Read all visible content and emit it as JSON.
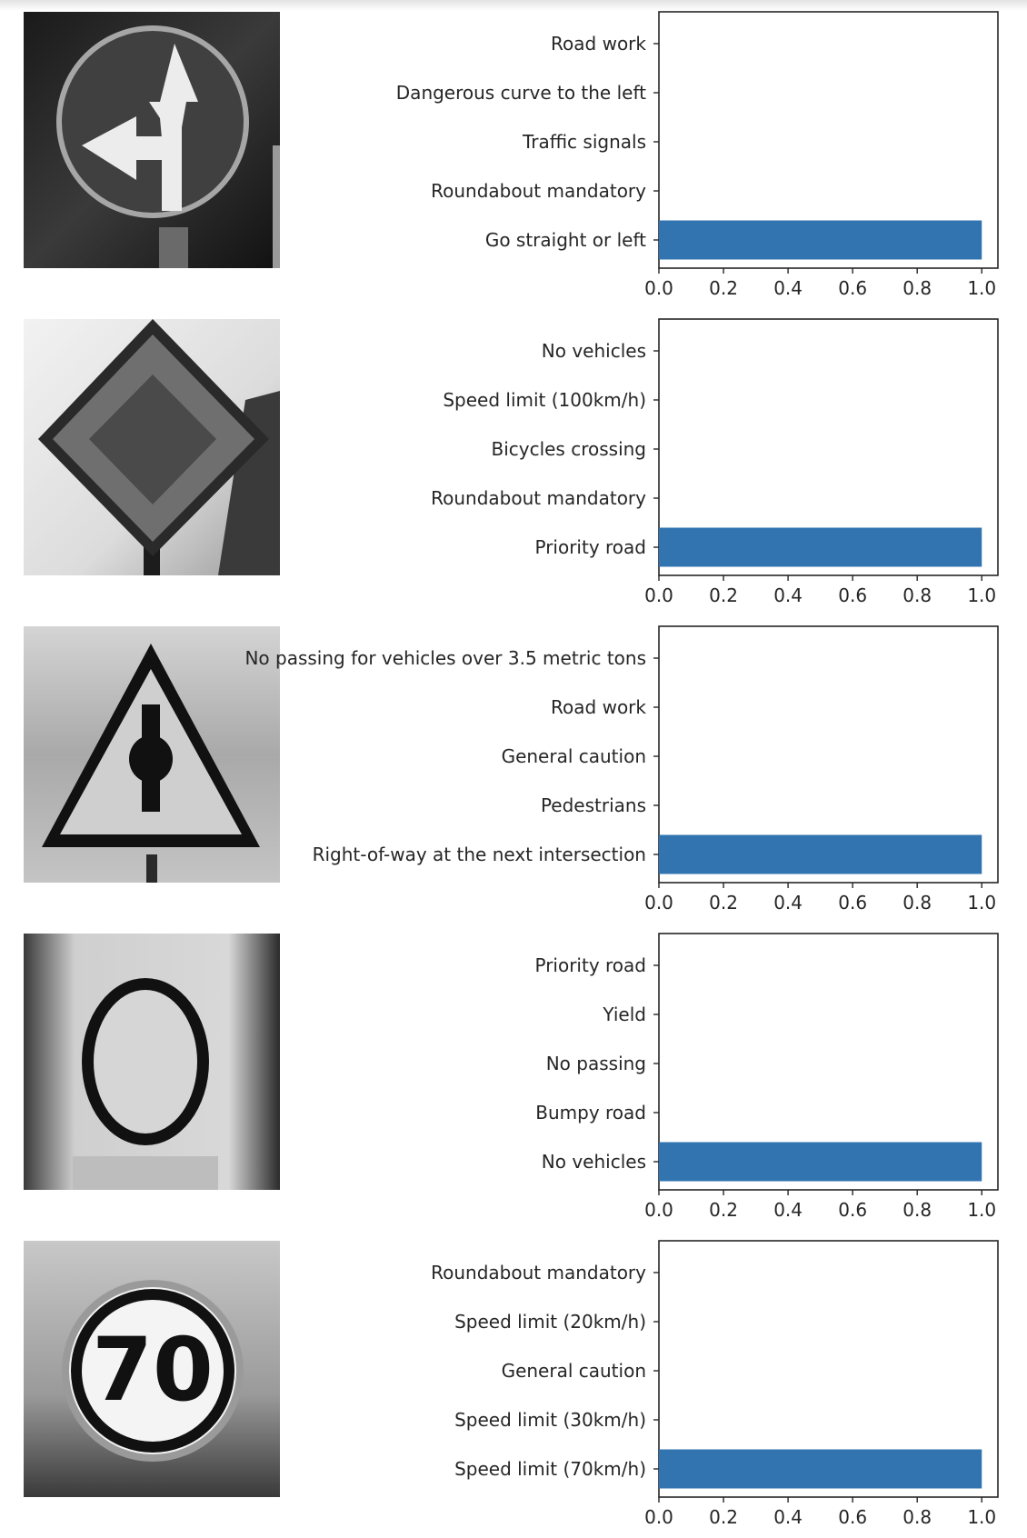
{
  "chart_data": [
    {
      "type": "bar",
      "orientation": "horizontal",
      "sign_image": "go-straight-or-left-sign",
      "categories": [
        "Road work",
        "Dangerous curve to the left",
        "Traffic signals",
        "Roundabout mandatory",
        "Go straight or left"
      ],
      "values": [
        0.0,
        0.0,
        0.0,
        0.0,
        1.0
      ],
      "xlim": [
        0,
        1.05
      ],
      "xticks": [
        "0.0",
        "0.2",
        "0.4",
        "0.6",
        "0.8",
        "1.0"
      ],
      "bar_color": "#3174b0"
    },
    {
      "type": "bar",
      "orientation": "horizontal",
      "sign_image": "priority-road-sign",
      "categories": [
        "No vehicles",
        "Speed limit (100km/h)",
        "Bicycles crossing",
        "Roundabout mandatory",
        "Priority road"
      ],
      "values": [
        0.0,
        0.0,
        0.0,
        0.0,
        1.0
      ],
      "xlim": [
        0,
        1.05
      ],
      "xticks": [
        "0.0",
        "0.2",
        "0.4",
        "0.6",
        "0.8",
        "1.0"
      ],
      "bar_color": "#3174b0"
    },
    {
      "type": "bar",
      "orientation": "horizontal",
      "sign_image": "right-of-way-sign",
      "categories": [
        "No passing for vehicles over 3.5 metric tons",
        "Road work",
        "General caution",
        "Pedestrians",
        "Right-of-way at the next intersection"
      ],
      "values": [
        0.0,
        0.0,
        0.0,
        0.0,
        1.0
      ],
      "xlim": [
        0,
        1.05
      ],
      "xticks": [
        "0.0",
        "0.2",
        "0.4",
        "0.6",
        "0.8",
        "1.0"
      ],
      "bar_color": "#3174b0"
    },
    {
      "type": "bar",
      "orientation": "horizontal",
      "sign_image": "no-vehicles-sign",
      "categories": [
        "Priority road",
        "Yield",
        "No passing",
        "Bumpy road",
        "No vehicles"
      ],
      "values": [
        0.0,
        0.0,
        0.0,
        0.0,
        1.0
      ],
      "xlim": [
        0,
        1.05
      ],
      "xticks": [
        "0.0",
        "0.2",
        "0.4",
        "0.6",
        "0.8",
        "1.0"
      ],
      "bar_color": "#3174b0"
    },
    {
      "type": "bar",
      "orientation": "horizontal",
      "sign_image": "speed-limit-70-sign",
      "sign_text": "70",
      "categories": [
        "Roundabout mandatory",
        "Speed limit (20km/h)",
        "General caution",
        "Speed limit (30km/h)",
        "Speed limit (70km/h)"
      ],
      "values": [
        0.0,
        0.0,
        0.0,
        0.0,
        1.0
      ],
      "xlim": [
        0,
        1.05
      ],
      "xticks": [
        "0.0",
        "0.2",
        "0.4",
        "0.6",
        "0.8",
        "1.0"
      ],
      "bar_color": "#3174b0"
    }
  ]
}
